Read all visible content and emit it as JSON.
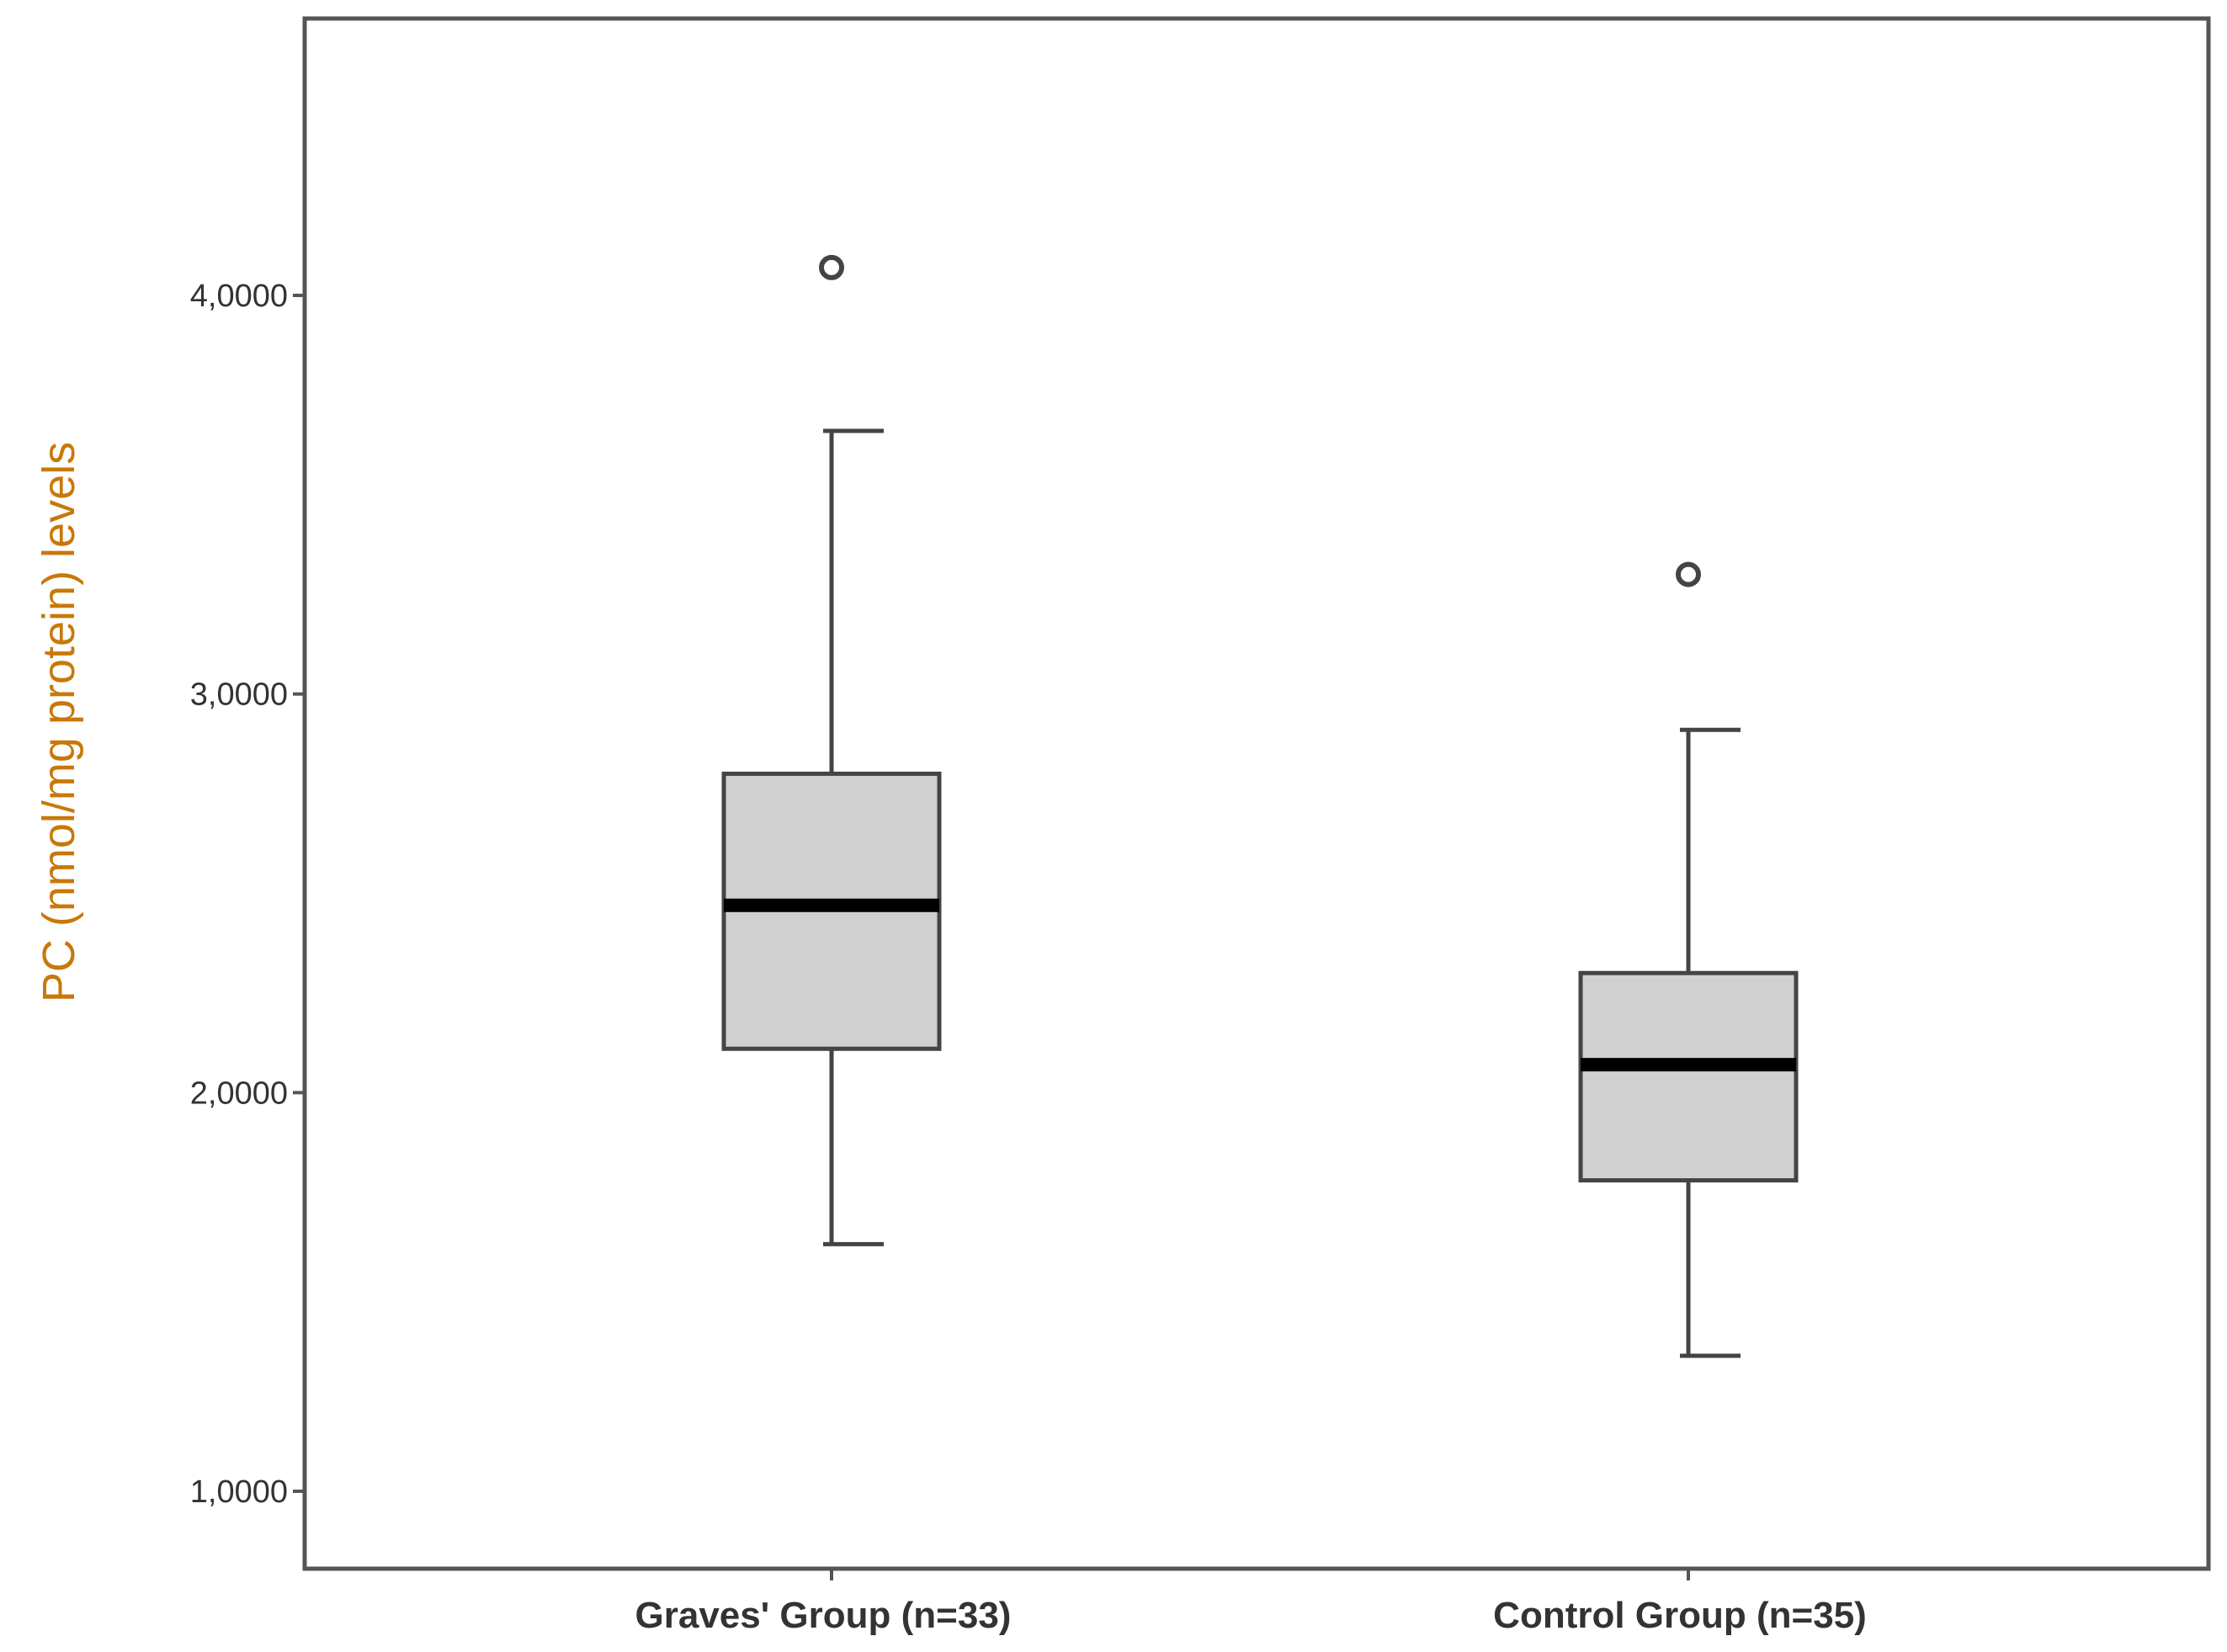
{
  "chart_data": {
    "type": "box",
    "ylabel": "PC (nmol/mg protein) levels",
    "xlabel": "",
    "ylim": [
      0.8,
      4.8
    ],
    "yticks": [
      1.0,
      2.0,
      3.0,
      4.0
    ],
    "ytick_labels": [
      "1,0000",
      "2,0000",
      "3,0000",
      "4,0000"
    ],
    "categories": [
      "Graves' Group (n=33)",
      "Control Group (n=35)"
    ],
    "boxes": [
      {
        "category": "Graves' Group (n=33)",
        "whisker_low": 1.62,
        "q1": 2.11,
        "median": 2.47,
        "q3": 2.8,
        "whisker_high": 3.66,
        "outliers": [
          4.07
        ]
      },
      {
        "category": "Control Group (n=35)",
        "whisker_low": 1.34,
        "q1": 1.78,
        "median": 2.07,
        "q3": 2.3,
        "whisker_high": 2.91,
        "outliers": [
          3.3
        ]
      }
    ],
    "grid": false,
    "colors": {
      "box_fill": "#d0d0d0",
      "box_stroke": "#444444",
      "median": "#000000",
      "axis": "#555555",
      "ylabel": "#c8780a"
    }
  }
}
